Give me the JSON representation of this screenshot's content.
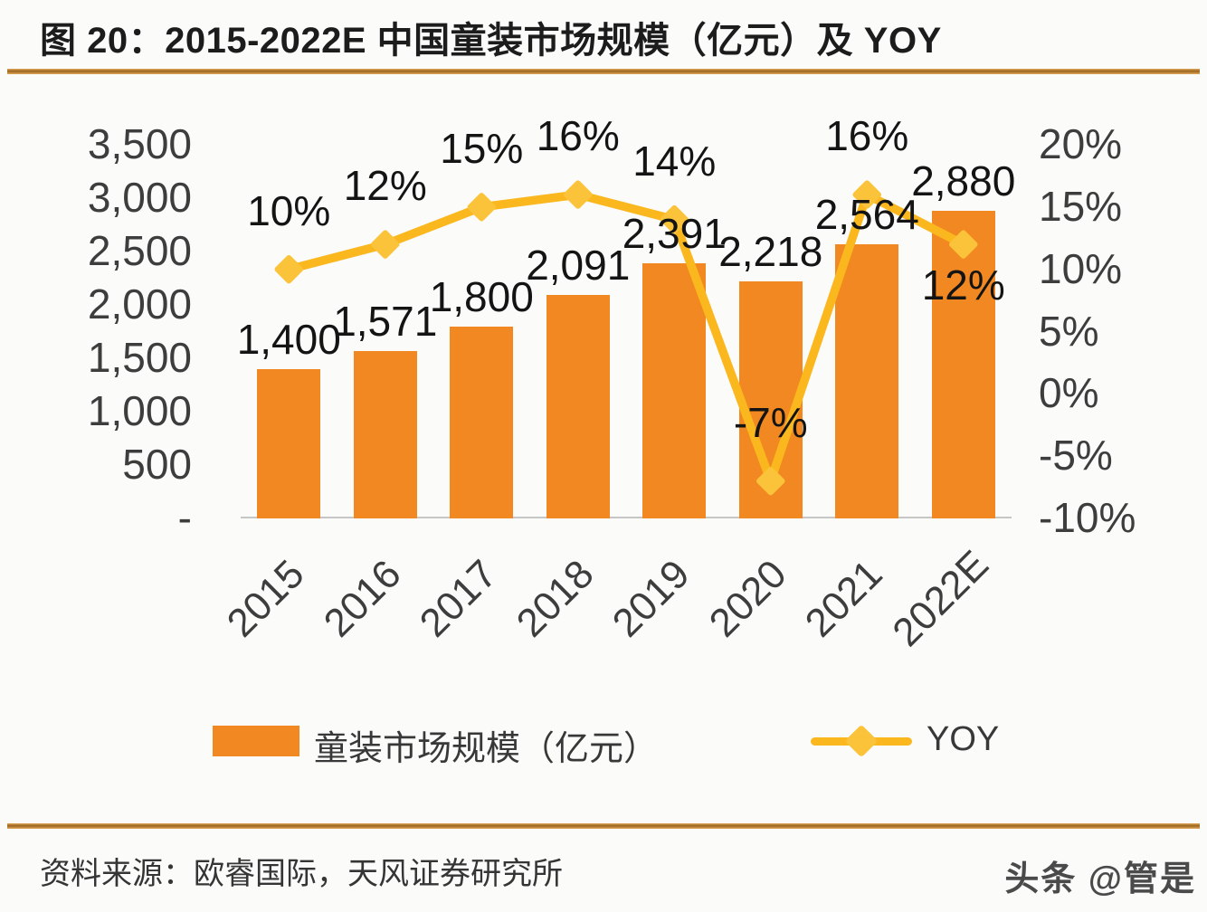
{
  "title": "图 20：2015-2022E 中国童装市场规模（亿元）及 YOY",
  "source_note": "资料来源：欧睿国际，天风证券研究所",
  "watermark": "头条 @管是",
  "colors": {
    "bar": "#F28821",
    "line": "#FAB71E",
    "marker": "#FBC33A",
    "divider_dark": "#9A6520",
    "divider_light": "#E2A85A",
    "label_text": "#141414",
    "axis_text": "#3D3D3D",
    "baseline": "#C6C6C6"
  },
  "legend": {
    "bar_label": "童装市场规模（亿元）",
    "line_label": "YOY"
  },
  "chart_data": {
    "type": "bar+line",
    "title": "2015-2022E 中国童装市场规模（亿元）及 YOY",
    "categories": [
      "2015",
      "2016",
      "2017",
      "2018",
      "2019",
      "2020",
      "2021",
      "2022E"
    ],
    "series": [
      {
        "name": "童装市场规模（亿元）",
        "type": "bar",
        "axis": "left",
        "values": [
          1400,
          1571,
          1800,
          2091,
          2391,
          2218,
          2564,
          2880
        ],
        "data_labels": [
          "1,400",
          "1,571",
          "1,800",
          "2,091",
          "2,391",
          "2,218",
          "2,564",
          "2,880"
        ]
      },
      {
        "name": "YOY",
        "type": "line",
        "axis": "right",
        "values": [
          10,
          12,
          15,
          16,
          14,
          -7,
          16,
          12
        ],
        "data_labels": [
          "10%",
          "12%",
          "15%",
          "16%",
          "14%",
          "-7%",
          "16%",
          "12%"
        ],
        "label_placement": [
          "above",
          "above",
          "above",
          "above",
          "above",
          "above",
          "above",
          "below"
        ]
      }
    ],
    "left_axis": {
      "min": 0,
      "max": 3500,
      "step": 500,
      "tick_labels": [
        "-",
        "500",
        "1,000",
        "1,500",
        "2,000",
        "2,500",
        "3,000",
        "3,500"
      ]
    },
    "right_axis": {
      "min": -10,
      "max": 20,
      "step": 5,
      "tick_labels": [
        "-10%",
        "-5%",
        "0%",
        "5%",
        "10%",
        "15%",
        "20%"
      ]
    },
    "grid": false,
    "legend_position": "bottom"
  }
}
